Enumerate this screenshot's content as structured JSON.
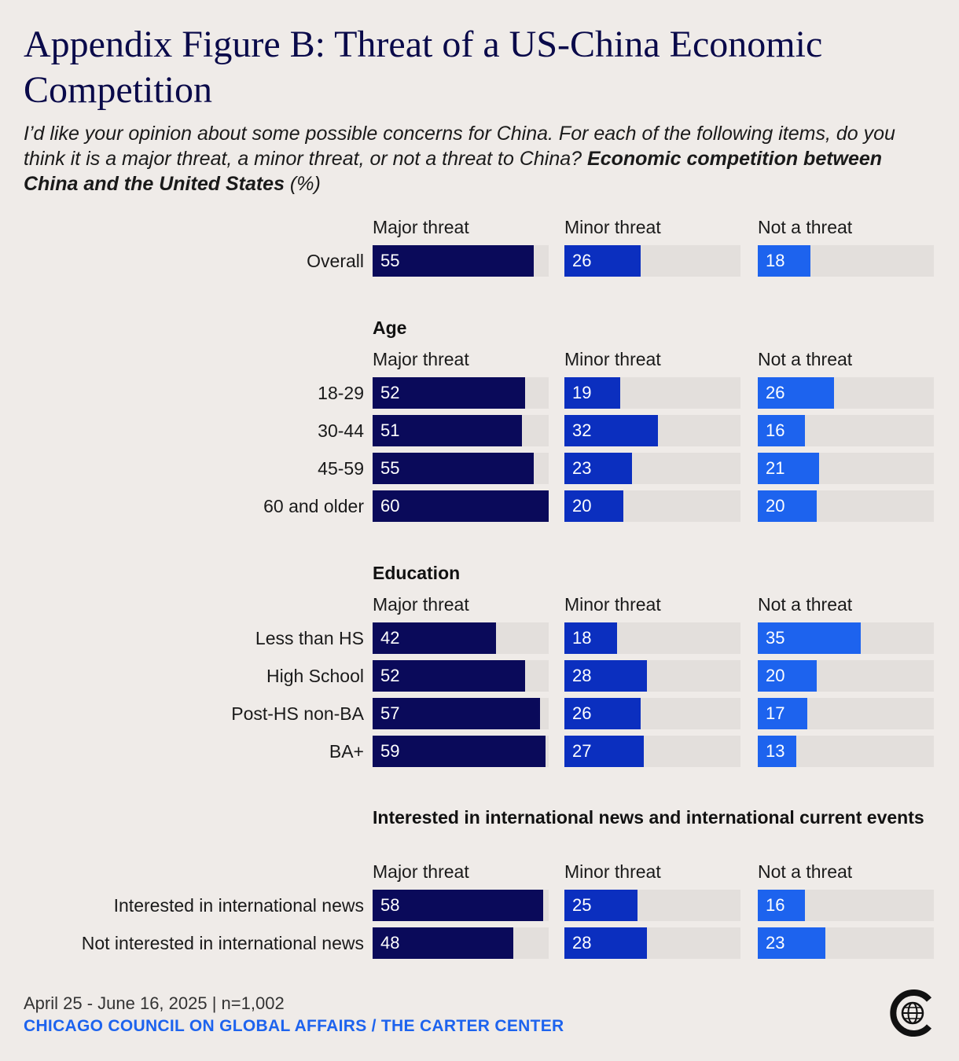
{
  "title": "Appendix Figure B: Threat of a US-China Economic Competition",
  "subtitle": {
    "italic": "I’d like your opinion about some possible concerns for China. For each of the following items, do you think it is a major threat, a minor threat, or not a threat to China? ",
    "bold": "Economic competition between China and the United States",
    "suffix": " (%)"
  },
  "columns": [
    "Major threat",
    "Minor threat",
    "Not a threat"
  ],
  "colors": {
    "major": "#0a0a5a",
    "minor": "#0b2fbf",
    "not": "#1d63ee",
    "track": "#e3dfdc",
    "background": "#efebe8",
    "title": "#0a0a4a",
    "publisher": "#1d63ee"
  },
  "chart_data": {
    "type": "bar",
    "scale_max": 60,
    "series": [
      {
        "name": "Major threat"
      },
      {
        "name": "Minor threat"
      },
      {
        "name": "Not a threat"
      }
    ],
    "groups": [
      {
        "title": "",
        "rows": [
          {
            "label": "Overall",
            "values": [
              55,
              26,
              18
            ]
          }
        ]
      },
      {
        "title": "Age",
        "rows": [
          {
            "label": "18-29",
            "values": [
              52,
              19,
              26
            ]
          },
          {
            "label": "30-44",
            "values": [
              51,
              32,
              16
            ]
          },
          {
            "label": "45-59",
            "values": [
              55,
              23,
              21
            ]
          },
          {
            "label": "60 and older",
            "values": [
              60,
              20,
              20
            ]
          }
        ]
      },
      {
        "title": "Education",
        "rows": [
          {
            "label": "Less than HS",
            "values": [
              42,
              18,
              35
            ]
          },
          {
            "label": "High School",
            "values": [
              52,
              28,
              20
            ]
          },
          {
            "label": "Post-HS non-BA",
            "values": [
              57,
              26,
              17
            ]
          },
          {
            "label": "BA+",
            "values": [
              59,
              27,
              13
            ]
          }
        ]
      },
      {
        "title": "Interested in international news and international current events",
        "rows": [
          {
            "label": "Interested in international news",
            "values": [
              58,
              25,
              16
            ]
          },
          {
            "label": "Not interested in international news",
            "values": [
              48,
              28,
              23
            ]
          }
        ]
      }
    ]
  },
  "footer": {
    "source": "April 25 - June 16, 2025 | n=1,002",
    "publisher": "CHICAGO COUNCIL ON GLOBAL AFFAIRS / THE CARTER CENTER",
    "logo_icon": "globe-logo-icon"
  }
}
